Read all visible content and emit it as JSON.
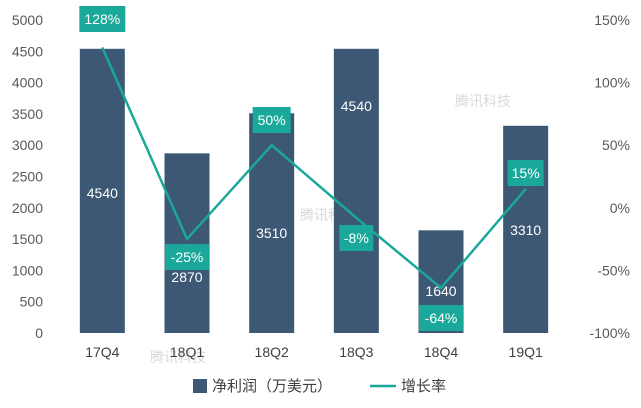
{
  "chart_data": {
    "type": "bar",
    "categories": [
      "17Q4",
      "18Q1",
      "18Q2",
      "18Q3",
      "18Q4",
      "19Q1"
    ],
    "series": [
      {
        "name": "净利润（万美元）",
        "type": "bar",
        "axis": "left",
        "values": [
          4540,
          2870,
          3510,
          4540,
          1640,
          3310
        ],
        "labels": [
          "4540",
          "2870",
          "3510",
          "4540",
          "1640",
          "3310"
        ],
        "color": "#3c5875"
      },
      {
        "name": "增长率",
        "type": "line",
        "axis": "right",
        "values": [
          128,
          -25,
          50,
          -8,
          -64,
          15
        ],
        "labels": [
          "128%",
          "-25%",
          "50%",
          "-8%",
          "-64%",
          "15%"
        ],
        "color": "#1aa89a"
      }
    ],
    "y_left": {
      "lim": [
        0,
        5000
      ],
      "ticks": [
        "0",
        "500",
        "1000",
        "1500",
        "2000",
        "2500",
        "3000",
        "3500",
        "4000",
        "4500",
        "5000"
      ]
    },
    "y_right": {
      "lim": [
        -100,
        150
      ],
      "ticks": [
        "-100%",
        "-50%",
        "0%",
        "50%",
        "100%",
        "150%"
      ]
    },
    "legend_position": "bottom",
    "grid": false
  },
  "watermark": {
    "text": "腾讯科技"
  }
}
